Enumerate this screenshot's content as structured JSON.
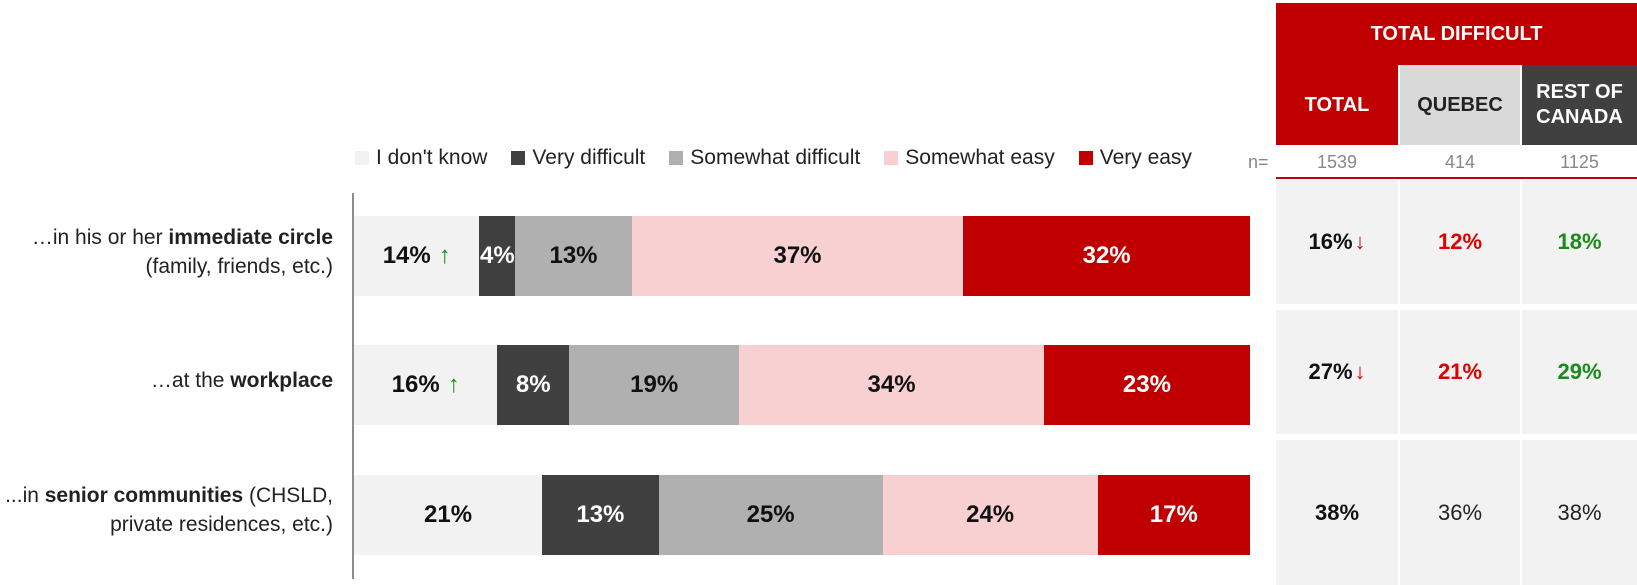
{
  "chart_data": {
    "type": "bar",
    "orientation": "horizontal-stacked-100",
    "legend": [
      {
        "name": "I don't know",
        "color": "#f2f2f2"
      },
      {
        "name": "Very difficult",
        "color": "#404040"
      },
      {
        "name": "Somewhat difficult",
        "color": "#b0b0b0"
      },
      {
        "name": "Somewhat easy",
        "color": "#f8d0d2"
      },
      {
        "name": "Very easy",
        "color": "#c00000"
      }
    ],
    "categories": [
      {
        "label_prefix": "…in his or her ",
        "label_bold": "immediate circle",
        "label_suffix": "",
        "label_line2": "(family, friends, etc.)"
      },
      {
        "label_prefix": "…at the ",
        "label_bold": "workplace",
        "label_suffix": "",
        "label_line2": ""
      },
      {
        "label_prefix": "...in ",
        "label_bold": "senior communities",
        "label_suffix": " (CHSLD,",
        "label_line2": "private residences, etc.)"
      }
    ],
    "series": [
      {
        "name": "I don't know",
        "values": [
          14,
          16,
          21
        ],
        "labels": [
          "14%",
          "16%",
          "21%"
        ],
        "significant_up": [
          true,
          true,
          false
        ]
      },
      {
        "name": "Very difficult",
        "values": [
          4,
          8,
          13
        ],
        "labels": [
          "4%",
          "8%",
          "13%"
        ]
      },
      {
        "name": "Somewhat difficult",
        "values": [
          13,
          19,
          25
        ],
        "labels": [
          "13%",
          "19%",
          "25%"
        ]
      },
      {
        "name": "Somewhat easy",
        "values": [
          37,
          34,
          24
        ],
        "labels": [
          "37%",
          "34%",
          "24%"
        ]
      },
      {
        "name": "Very easy",
        "values": [
          32,
          23,
          17
        ],
        "labels": [
          "32%",
          "23%",
          "17%"
        ]
      }
    ],
    "xlim": [
      0,
      100
    ]
  },
  "table": {
    "title": "TOTAL DIFFICULT",
    "n_label": "n=",
    "columns": [
      {
        "label": "TOTAL",
        "n": "1539",
        "bg": "#c00000",
        "fg": "#ffffff"
      },
      {
        "label": "QUEBEC",
        "n": "414",
        "bg": "#d9d9d9",
        "fg": "#222222"
      },
      {
        "label": "REST OF CANADA",
        "n": "1125",
        "bg": "#404040",
        "fg": "#ffffff"
      }
    ],
    "rows": [
      [
        {
          "v": "16%",
          "down": true,
          "color": "#111111",
          "bold": true
        },
        {
          "v": "12%",
          "color": "#e00000",
          "bold": true
        },
        {
          "v": "18%",
          "color": "#1a8a1a",
          "bold": true
        }
      ],
      [
        {
          "v": "27%",
          "down": true,
          "color": "#111111",
          "bold": true
        },
        {
          "v": "21%",
          "color": "#e00000",
          "bold": true
        },
        {
          "v": "29%",
          "color": "#1a8a1a",
          "bold": true
        }
      ],
      [
        {
          "v": "38%",
          "color": "#111111",
          "bold": true
        },
        {
          "v": "36%",
          "color": "#222222",
          "bold": false
        },
        {
          "v": "38%",
          "color": "#222222",
          "bold": false
        }
      ]
    ],
    "arrow_up_glyph": "↑",
    "arrow_down_glyph": "↓"
  }
}
